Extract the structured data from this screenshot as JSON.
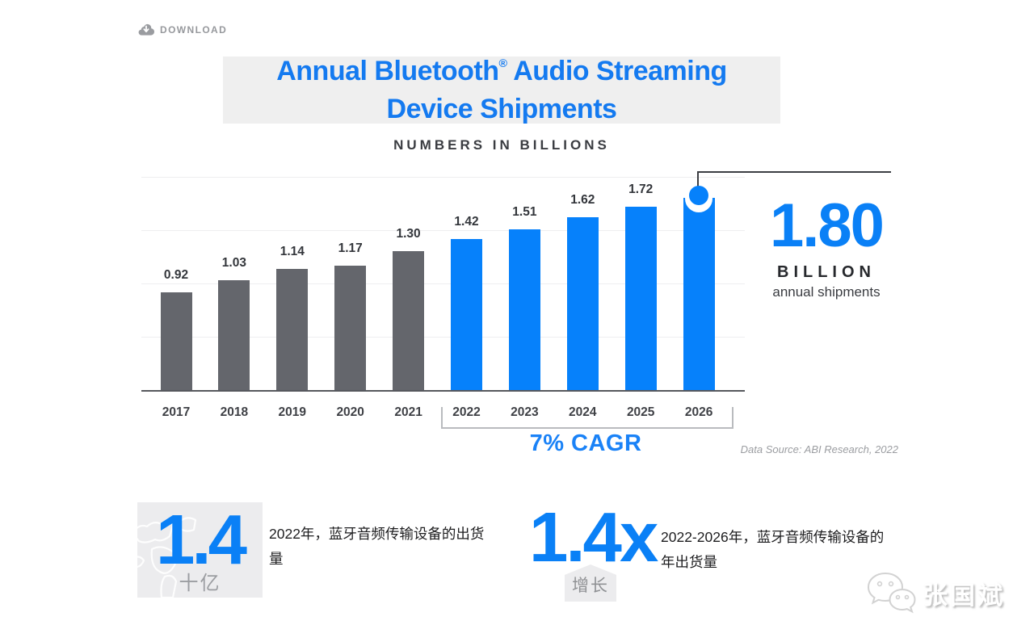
{
  "toolbar": {
    "download_label": "DOWNLOAD"
  },
  "header": {
    "title_line1_pre": "Annual Bluetooth",
    "title_reg_mark": "®",
    "title_line1_post": " Audio Streaming",
    "title_line2": "Device Shipments",
    "subtitle": "NUMBERS IN BILLIONS"
  },
  "chart_data": {
    "type": "bar",
    "title": "Annual Bluetooth® Audio Streaming Device Shipments",
    "subtitle": "NUMBERS IN BILLIONS",
    "unit": "billions of devices",
    "categories": [
      "2017",
      "2018",
      "2019",
      "2020",
      "2021",
      "2022",
      "2023",
      "2024",
      "2025",
      "2026"
    ],
    "values": [
      0.92,
      1.03,
      1.14,
      1.17,
      1.3,
      1.42,
      1.51,
      1.62,
      1.72,
      1.8
    ],
    "segments": [
      {
        "name": "historical",
        "years": "2017-2021",
        "color": "#64666c"
      },
      {
        "name": "forecast",
        "years": "2022-2026",
        "color": "#0681fb"
      }
    ],
    "forecast_start_index": 5,
    "highlight_index": 9,
    "ylim": [
      0,
      2.0
    ],
    "gridline_step": 0.5,
    "grid": true,
    "legend_position": "none",
    "highlight": {
      "category": "2026",
      "value": 1.8,
      "label": "1.80",
      "unit": "BILLION",
      "caption": "annual shipments"
    },
    "cagr": {
      "label": "7% CAGR",
      "range": [
        "2022",
        "2026"
      ]
    },
    "source": "Data Source: ABI Research, 2022"
  },
  "callout": {
    "value": "1.80",
    "unit": "BILLION",
    "caption": "annual shipments"
  },
  "cagr_label": "7% CAGR",
  "source_label": "Data Source: ABI Research, 2022",
  "stats": {
    "left": {
      "value": "1.4",
      "unit": "十亿",
      "desc_line1": "2022年，蓝牙音频传输设备的出货",
      "desc_line2": "量"
    },
    "right": {
      "value": "1.4x",
      "tag": "增长",
      "desc_line1": "2022-2026年，蓝牙音频传输设备的",
      "desc_line2": "年出货量"
    }
  },
  "watermark": {
    "name": "张国斌",
    "icon": "wechat-icon"
  },
  "colors": {
    "blue": "#0a80f6",
    "bar_blue": "#0681fb",
    "bar_gray": "#64666c",
    "title_blue": "#147af0",
    "grid": "#eeeef0",
    "axis": "#56585d",
    "text_dark": "#33363b",
    "text_muted": "#9b9da1",
    "panel_gray": "#ececee",
    "title_panel_gray": "#efefef"
  }
}
